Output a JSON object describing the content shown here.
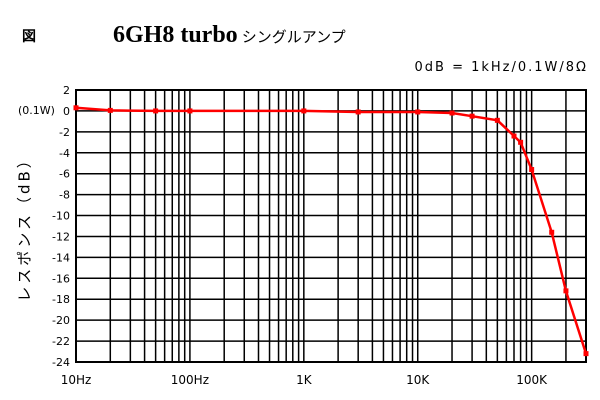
{
  "figure_label": "図",
  "chart_data": {
    "type": "line",
    "title": "6GH8 turbo",
    "subtitle": "シングルアンプ",
    "reference_note": "0dB = 1kHz/0.1W/8Ω",
    "zero_marker": "(0.1W)",
    "xlabel": "",
    "ylabel": "レスポンス（dB）",
    "x_scale": "log",
    "xlim": [
      10,
      300000
    ],
    "ylim": [
      -24,
      2
    ],
    "grid": true,
    "x_ticks": [
      {
        "value": 10,
        "label": "10Hz"
      },
      {
        "value": 100,
        "label": "100Hz"
      },
      {
        "value": 1000,
        "label": "1K"
      },
      {
        "value": 10000,
        "label": "10K"
      },
      {
        "value": 100000,
        "label": "100K"
      }
    ],
    "y_ticks": [
      2,
      0,
      -2,
      -4,
      -6,
      -8,
      -10,
      -12,
      -14,
      -16,
      -18,
      -20,
      -22,
      -24
    ],
    "line_color": "#ff0000",
    "series": [
      {
        "x": [
          10,
          20,
          50,
          100,
          1000,
          3000,
          10000,
          20000,
          30000,
          50000,
          70000,
          80000,
          100000,
          150000,
          200000,
          300000
        ],
        "y": [
          0.3,
          0.05,
          0,
          0,
          0,
          -0.1,
          -0.1,
          -0.2,
          -0.5,
          -0.9,
          -2.4,
          -3.0,
          -5.6,
          -11.6,
          -17.2,
          -23.2
        ]
      }
    ]
  }
}
